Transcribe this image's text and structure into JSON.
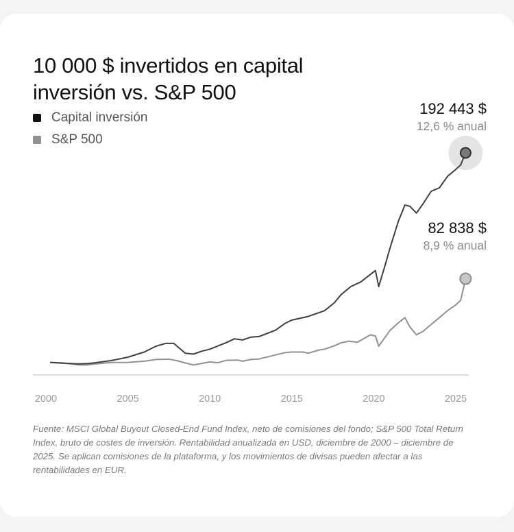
{
  "title": "10 000 $ invertidos en capital inversión vs. S&P 500",
  "source_note": "Fuente: MSCI Global Buyout Closed-End Fund Index, neto de comisiones del fondo; S&P 500 Total Return Index, bruto de costes de inversión. Rentabilidad anualizada en USD, diciembre de 2000 – diciembre de 2025. Se aplican comisiones de la plataforma, y los movimientos de divisas pueden afectar a las rentabilidades en EUR.",
  "colors": {
    "capital": "#3f3f3f",
    "sp500": "#909090",
    "axis": "#c8c8c8",
    "tick_text": "#9a9a9a"
  },
  "chart_data": {
    "type": "line",
    "title": "10 000 $ invertidos en capital inversión vs. S&P 500",
    "xlabel": "",
    "ylabel": "",
    "x_ticks": [
      "2000",
      "2005",
      "2010",
      "2015",
      "2020",
      "2025"
    ],
    "xlim": [
      2000,
      2025.75
    ],
    "ylim": [
      -1000,
      192443
    ],
    "legend_position": "top-left",
    "grid": false,
    "series": [
      {
        "name": "Capital inversión",
        "color": "#3f3f3f",
        "final_value_label": "192 443 $",
        "annual_label": "12,6 % anual",
        "points": [
          [
            2000.25,
            10000
          ],
          [
            2001,
            9300
          ],
          [
            2002,
            8700
          ],
          [
            2002.5,
            8900
          ],
          [
            2003,
            9700
          ],
          [
            2004,
            11600
          ],
          [
            2005,
            14500
          ],
          [
            2006,
            19000
          ],
          [
            2006.7,
            24000
          ],
          [
            2007.3,
            26500
          ],
          [
            2007.8,
            26500
          ],
          [
            2008.5,
            18000
          ],
          [
            2009,
            17200
          ],
          [
            2009.5,
            19700
          ],
          [
            2010,
            21500
          ],
          [
            2011,
            27200
          ],
          [
            2011.5,
            30500
          ],
          [
            2012,
            29500
          ],
          [
            2012.5,
            32000
          ],
          [
            2013,
            32500
          ],
          [
            2014,
            38000
          ],
          [
            2014.6,
            44000
          ],
          [
            2015,
            46800
          ],
          [
            2016,
            50000
          ],
          [
            2017,
            55000
          ],
          [
            2017.6,
            62000
          ],
          [
            2018,
            69000
          ],
          [
            2018.6,
            76000
          ],
          [
            2019.2,
            80000
          ],
          [
            2019.7,
            85500
          ],
          [
            2020.1,
            90000
          ],
          [
            2020.3,
            76000
          ],
          [
            2020.7,
            95000
          ],
          [
            2021,
            110000
          ],
          [
            2021.5,
            133000
          ],
          [
            2021.9,
            147000
          ],
          [
            2022.2,
            146000
          ],
          [
            2022.6,
            140000
          ],
          [
            2023,
            148000
          ],
          [
            2023.5,
            159000
          ],
          [
            2024,
            162000
          ],
          [
            2024.5,
            172000
          ],
          [
            2025,
            178000
          ],
          [
            2025.3,
            182000
          ],
          [
            2025.6,
            192443
          ]
        ]
      },
      {
        "name": "S&P 500",
        "color": "#909090",
        "final_value_label": "82 838 $",
        "annual_label": "8,9 % anual",
        "points": [
          [
            2000.25,
            10000
          ],
          [
            2001,
            9600
          ],
          [
            2002,
            7800
          ],
          [
            2002.5,
            7700
          ],
          [
            2003,
            8600
          ],
          [
            2004,
            9900
          ],
          [
            2005,
            10000
          ],
          [
            2006,
            11000
          ],
          [
            2006.7,
            12500
          ],
          [
            2007.5,
            12800
          ],
          [
            2008,
            11500
          ],
          [
            2008.5,
            9500
          ],
          [
            2009,
            7700
          ],
          [
            2009.5,
            9100
          ],
          [
            2010,
            10400
          ],
          [
            2010.5,
            9700
          ],
          [
            2011,
            11800
          ],
          [
            2011.7,
            12000
          ],
          [
            2012,
            11000
          ],
          [
            2012.5,
            12500
          ],
          [
            2013,
            13000
          ],
          [
            2014,
            16500
          ],
          [
            2014.6,
            18500
          ],
          [
            2015,
            19000
          ],
          [
            2015.7,
            19000
          ],
          [
            2016,
            18000
          ],
          [
            2016.6,
            20500
          ],
          [
            2017,
            21500
          ],
          [
            2017.6,
            24500
          ],
          [
            2018,
            27000
          ],
          [
            2018.5,
            28500
          ],
          [
            2019,
            27500
          ],
          [
            2019.3,
            30000
          ],
          [
            2019.8,
            34000
          ],
          [
            2020.1,
            33000
          ],
          [
            2020.3,
            24000
          ],
          [
            2020.7,
            32000
          ],
          [
            2021,
            38000
          ],
          [
            2021.5,
            44500
          ],
          [
            2021.9,
            49000
          ],
          [
            2022.2,
            41000
          ],
          [
            2022.6,
            34000
          ],
          [
            2023,
            37000
          ],
          [
            2023.5,
            43000
          ],
          [
            2024,
            49000
          ],
          [
            2024.5,
            55000
          ],
          [
            2025,
            60000
          ],
          [
            2025.3,
            64000
          ],
          [
            2025.6,
            82838
          ]
        ]
      }
    ]
  }
}
